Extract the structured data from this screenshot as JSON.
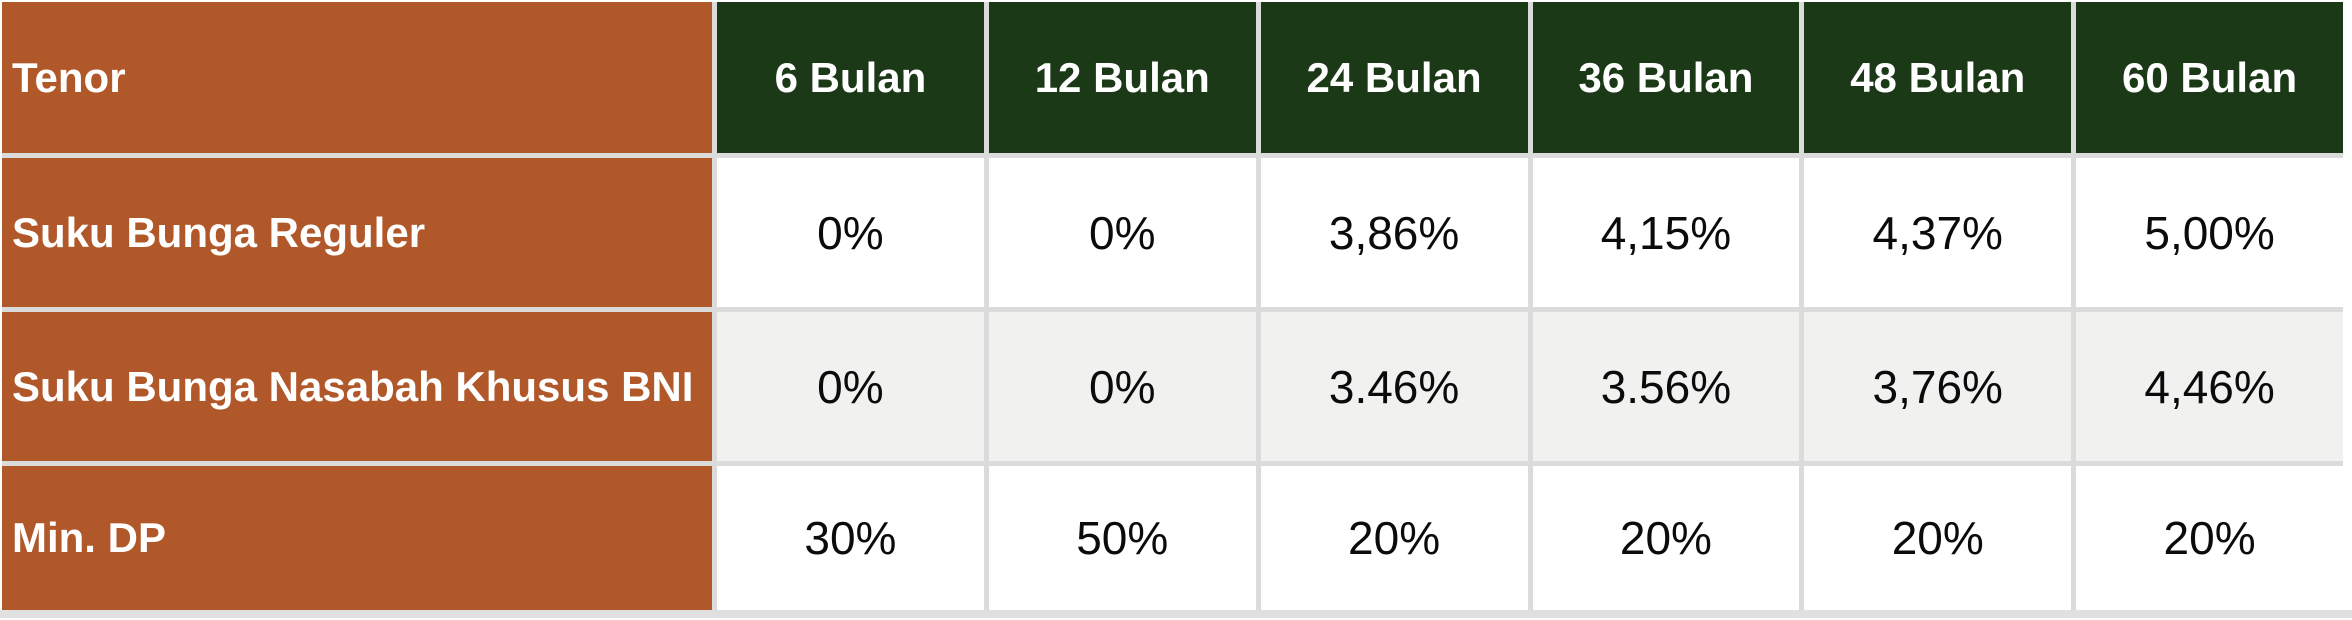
{
  "table": {
    "corner_label": "Tenor",
    "header": {
      "columns": [
        "6 Bulan",
        "12 Bulan",
        "24 Bulan",
        "36 Bulan",
        "48 Bulan",
        "60 Bulan"
      ]
    },
    "rows": [
      {
        "label": "Suku Bunga Reguler",
        "values": [
          "0%",
          "0%",
          "3,86%",
          "4,15%",
          "4,37%",
          "5,00%"
        ]
      },
      {
        "label": "Suku Bunga Nasabah Khusus BNI",
        "values": [
          "0%",
          "0%",
          "3.46%",
          "3.56%",
          "3,76%",
          "4,46%"
        ]
      },
      {
        "label": "Min. DP",
        "values": [
          "30%",
          "50%",
          "20%",
          "20%",
          "20%",
          "20%"
        ]
      }
    ]
  },
  "colors": {
    "label_bg": "#B1582A",
    "header_bg": "#1C3917",
    "row_bg": "#FFFFFF",
    "row_alt_bg": "#F1F1F0",
    "grid_line": "#DBDBDB",
    "bottom_edge": "#E0E0E0",
    "header_text": "#FFFFFF",
    "value_text": "#0B0B0B"
  },
  "chart_data": {
    "type": "table",
    "title": "",
    "columns": [
      "Tenor",
      "6 Bulan",
      "12 Bulan",
      "24 Bulan",
      "36 Bulan",
      "48 Bulan",
      "60 Bulan"
    ],
    "rows": [
      [
        "Suku Bunga Reguler",
        "0%",
        "0%",
        "3,86%",
        "4,15%",
        "4,37%",
        "5,00%"
      ],
      [
        "Suku Bunga Nasabah Khusus BNI",
        "0%",
        "0%",
        "3.46%",
        "3.56%",
        "3,76%",
        "4,46%"
      ],
      [
        "Min. DP",
        "30%",
        "50%",
        "20%",
        "20%",
        "20%",
        "20%"
      ]
    ],
    "notes": "Financing tenor table: interest rates (suku bunga) and minimum down payment per tenor in months (bulan)"
  }
}
